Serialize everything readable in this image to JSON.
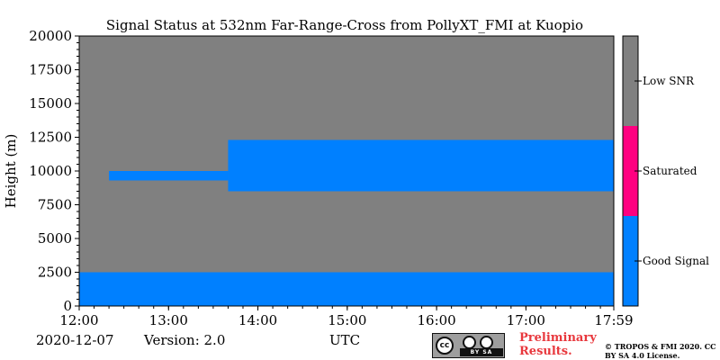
{
  "chart_data": {
    "type": "heatmap",
    "title": "Signal Status at 532nm Far-Range-Cross from PollyXT_FMI at Kuopio",
    "xlabel": "UTC",
    "ylabel": "Height (m)",
    "xlim": [
      "12:00",
      "17:59"
    ],
    "ylim": [
      0,
      20000
    ],
    "xticks": [
      "12:00",
      "13:00",
      "14:00",
      "15:00",
      "16:00",
      "17:00",
      "17:59"
    ],
    "yticks": [
      0,
      2500,
      5000,
      7500,
      10000,
      12500,
      15000,
      17500,
      20000
    ],
    "colorbar": {
      "categories": [
        {
          "label": "Good Signal",
          "color": "#0080ff"
        },
        {
          "label": "Saturated",
          "color": "#ff0080"
        },
        {
          "label": "Low SNR",
          "color": "#808080"
        }
      ]
    },
    "regions": [
      {
        "status": "Good Signal",
        "from": "12:00",
        "to": "17:59",
        "bottom": 0,
        "top": 2500
      },
      {
        "status": "Good Signal",
        "from": "13:40",
        "to": "17:59",
        "bottom": 8500,
        "top": 12300
      },
      {
        "status": "Good Signal",
        "from": "12:20",
        "to": "13:40",
        "bottom": 9300,
        "top": 10000
      }
    ]
  },
  "footer": {
    "date": "2020-12-07",
    "version": "Version: 2.0",
    "license_note": "Preliminary Results.",
    "copyright": "© TROPOS & FMI 2020. CC BY SA 4.0 License.",
    "cc_logo_text": "cc",
    "cc_strip_text": "BY SA"
  }
}
